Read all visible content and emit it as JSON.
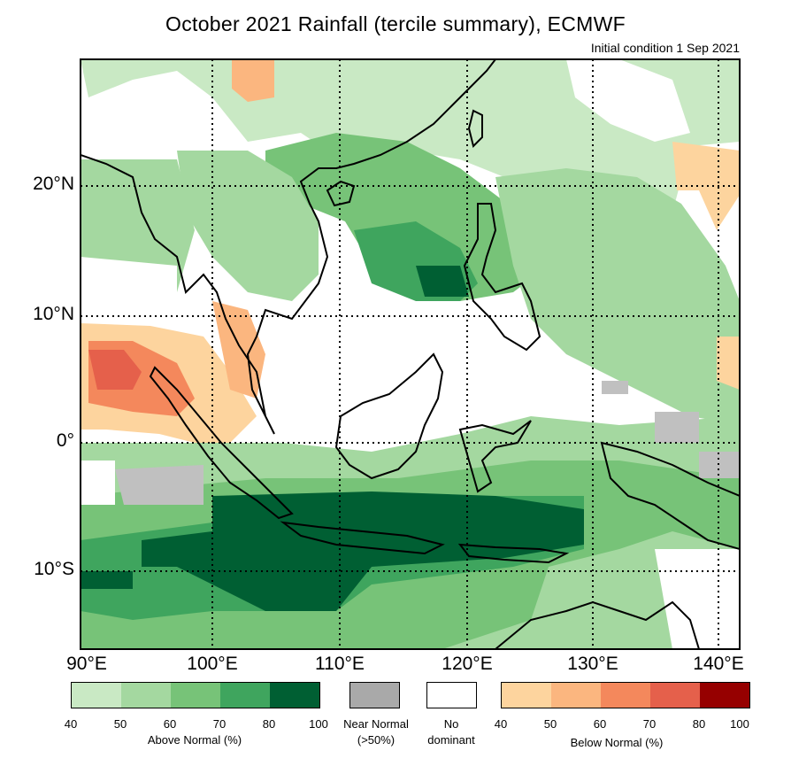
{
  "title": "October 2021 Rainfall (tercile summary), ECMWF",
  "subtitle": "Initial condition 1 Sep 2021",
  "axes": {
    "lat_labels": [
      "20°N",
      "10°N",
      "0°",
      "10°S"
    ],
    "lon_labels": [
      "90°E",
      "100°E",
      "110°E",
      "120°E",
      "130°E",
      "140°E"
    ]
  },
  "legend": {
    "above": {
      "caption": "Above Normal (%)",
      "ticks": [
        "40",
        "50",
        "60",
        "70",
        "80",
        "100"
      ],
      "colors": [
        "#c9e9c4",
        "#a4d8a0",
        "#77c378",
        "#3fa55e",
        "#005f33"
      ]
    },
    "near": {
      "caption_line1": "Near Normal",
      "caption_line2": "(>50%)",
      "color": "#a9a9a9"
    },
    "none": {
      "caption_line1": "No",
      "caption_line2": "dominant",
      "color": "#ffffff"
    },
    "below": {
      "caption": "Below Normal (%)",
      "ticks": [
        "40",
        "50",
        "60",
        "70",
        "80",
        "100"
      ],
      "colors": [
        "#fdd49e",
        "#fbb67f",
        "#f4885c",
        "#e5604b",
        "#960000"
      ]
    }
  }
}
